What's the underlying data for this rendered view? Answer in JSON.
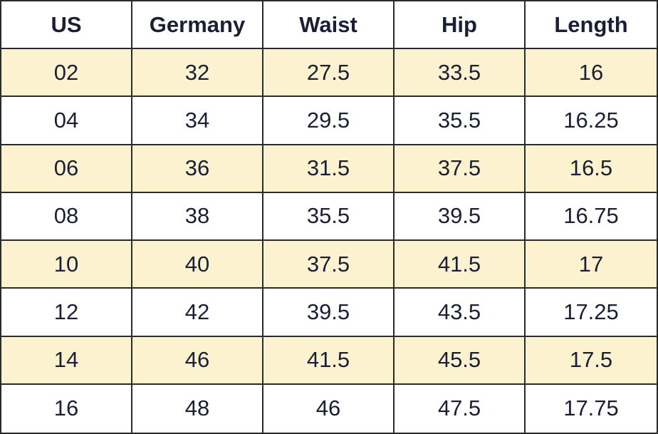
{
  "table": {
    "header": [
      "US",
      "Germany",
      "Waist",
      "Hip",
      "Length"
    ],
    "rows": [
      [
        "02",
        "32",
        "27.5",
        "33.5",
        "16"
      ],
      [
        "04",
        "34",
        "29.5",
        "35.5",
        "16.25"
      ],
      [
        "06",
        "36",
        "31.5",
        "37.5",
        "16.5"
      ],
      [
        "08",
        "38",
        "35.5",
        "39.5",
        "16.75"
      ],
      [
        "10",
        "40",
        "37.5",
        "41.5",
        "17"
      ],
      [
        "12",
        "42",
        "39.5",
        "43.5",
        "17.25"
      ],
      [
        "14",
        "46",
        "41.5",
        "45.5",
        "17.5"
      ],
      [
        "16",
        "48",
        "46",
        "47.5",
        "17.75"
      ]
    ]
  }
}
